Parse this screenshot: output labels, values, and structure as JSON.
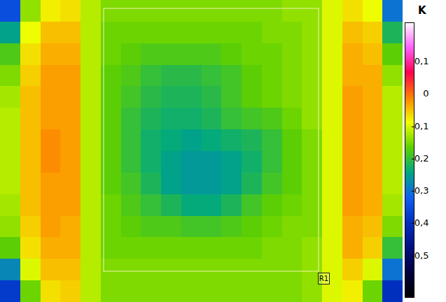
{
  "chart_data": {
    "type": "heatmap",
    "xlim": [
      0,
      575
    ],
    "ylim": [
      0,
      432
    ],
    "tick_labels": false,
    "cells": [
      [
        -0.35,
        -0.14,
        -0.08,
        -0.07,
        -0.12,
        -0.15,
        -0.15,
        -0.15,
        -0.15,
        -0.15,
        -0.15,
        -0.15,
        -0.15,
        -0.15,
        -0.14,
        -0.14,
        -0.1,
        -0.07,
        -0.09,
        -0.3
      ],
      [
        -0.25,
        -0.09,
        -0.05,
        -0.05,
        -0.12,
        -0.16,
        -0.16,
        -0.16,
        -0.16,
        -0.16,
        -0.16,
        -0.16,
        -0.16,
        -0.15,
        -0.15,
        -0.14,
        -0.1,
        -0.05,
        -0.06,
        -0.22
      ],
      [
        -0.18,
        -0.07,
        -0.04,
        -0.04,
        -0.12,
        -0.16,
        -0.17,
        -0.18,
        -0.18,
        -0.18,
        -0.18,
        -0.17,
        -0.16,
        -0.16,
        -0.15,
        -0.14,
        -0.1,
        -0.04,
        -0.05,
        -0.17
      ],
      [
        -0.15,
        -0.06,
        -0.03,
        -0.03,
        -0.12,
        -0.17,
        -0.18,
        -0.2,
        -0.21,
        -0.21,
        -0.2,
        -0.19,
        -0.17,
        -0.16,
        -0.15,
        -0.14,
        -0.1,
        -0.04,
        -0.04,
        -0.14
      ],
      [
        -0.13,
        -0.05,
        -0.03,
        -0.03,
        -0.12,
        -0.17,
        -0.19,
        -0.21,
        -0.22,
        -0.22,
        -0.21,
        -0.19,
        -0.17,
        -0.16,
        -0.15,
        -0.14,
        -0.1,
        -0.03,
        -0.04,
        -0.12
      ],
      [
        -0.12,
        -0.05,
        -0.03,
        -0.03,
        -0.12,
        -0.17,
        -0.2,
        -0.22,
        -0.23,
        -0.23,
        -0.22,
        -0.2,
        -0.19,
        -0.18,
        -0.16,
        -0.14,
        -0.1,
        -0.03,
        -0.04,
        -0.12
      ],
      [
        -0.12,
        -0.05,
        -0.02,
        -0.03,
        -0.12,
        -0.17,
        -0.2,
        -0.23,
        -0.24,
        -0.25,
        -0.24,
        -0.23,
        -0.22,
        -0.2,
        -0.17,
        -0.15,
        -0.1,
        -0.03,
        -0.04,
        -0.12
      ],
      [
        -0.12,
        -0.05,
        -0.02,
        -0.03,
        -0.12,
        -0.17,
        -0.2,
        -0.23,
        -0.25,
        -0.26,
        -0.26,
        -0.25,
        -0.23,
        -0.2,
        -0.17,
        -0.15,
        -0.1,
        -0.03,
        -0.04,
        -0.12
      ],
      [
        -0.12,
        -0.05,
        -0.03,
        -0.03,
        -0.12,
        -0.17,
        -0.19,
        -0.22,
        -0.25,
        -0.26,
        -0.26,
        -0.25,
        -0.22,
        -0.19,
        -0.17,
        -0.15,
        -0.1,
        -0.03,
        -0.04,
        -0.12
      ],
      [
        -0.13,
        -0.05,
        -0.03,
        -0.03,
        -0.12,
        -0.16,
        -0.18,
        -0.2,
        -0.22,
        -0.24,
        -0.24,
        -0.22,
        -0.19,
        -0.17,
        -0.16,
        -0.15,
        -0.1,
        -0.03,
        -0.04,
        -0.13
      ],
      [
        -0.14,
        -0.06,
        -0.03,
        -0.04,
        -0.12,
        -0.16,
        -0.17,
        -0.18,
        -0.18,
        -0.19,
        -0.19,
        -0.18,
        -0.17,
        -0.16,
        -0.15,
        -0.15,
        -0.1,
        -0.04,
        -0.05,
        -0.15
      ],
      [
        -0.17,
        -0.07,
        -0.04,
        -0.04,
        -0.12,
        -0.16,
        -0.16,
        -0.16,
        -0.16,
        -0.16,
        -0.16,
        -0.16,
        -0.16,
        -0.15,
        -0.15,
        -0.14,
        -0.1,
        -0.04,
        -0.06,
        -0.2
      ],
      [
        -0.28,
        -0.1,
        -0.05,
        -0.05,
        -0.12,
        -0.15,
        -0.15,
        -0.15,
        -0.15,
        -0.15,
        -0.15,
        -0.15,
        -0.15,
        -0.15,
        -0.15,
        -0.14,
        -0.1,
        -0.06,
        -0.1,
        -0.3
      ],
      [
        -0.38,
        -0.16,
        -0.07,
        -0.06,
        -0.12,
        -0.15,
        -0.15,
        -0.15,
        -0.15,
        -0.15,
        -0.15,
        -0.15,
        -0.15,
        -0.15,
        -0.15,
        -0.14,
        -0.1,
        -0.08,
        -0.16,
        -0.4
      ]
    ],
    "regions": [
      {
        "label": "R1",
        "x": [
          148,
          455
        ],
        "y": [
          12,
          388
        ]
      }
    ],
    "colorbar": {
      "title": "K",
      "range": [
        -0.63,
        0.22
      ],
      "ticks": [
        {
          "value": 0.1,
          "label": "0,1"
        },
        0,
        {
          "value": -0.1,
          "label": "-0,1"
        },
        {
          "value": -0.2,
          "label": "-0,2"
        },
        {
          "value": -0.3,
          "label": "-0,3"
        },
        {
          "value": -0.4,
          "label": "-0,4"
        },
        {
          "value": -0.5,
          "label": "-0,5"
        }
      ]
    }
  }
}
